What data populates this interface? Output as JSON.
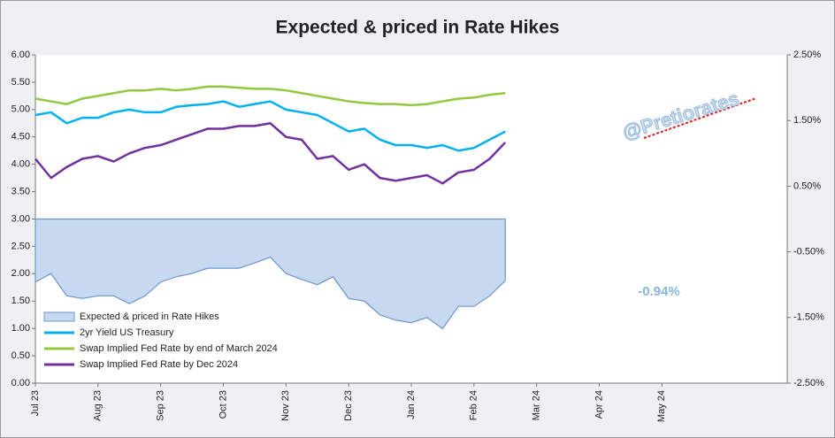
{
  "chart_data": {
    "type": "line",
    "title": "Expected & priced in Rate Hikes",
    "categories": [
      "Jul 23",
      null,
      null,
      null,
      "Aug 23",
      null,
      null,
      null,
      "Sep 23",
      null,
      null,
      null,
      "Oct 23",
      null,
      null,
      null,
      "Nov 23",
      null,
      null,
      null,
      "Dec 23",
      null,
      null,
      null,
      "Jan 24",
      null,
      null,
      null,
      "Feb 24",
      null,
      null,
      null,
      "Mar 24",
      null,
      null,
      null,
      "Apr 24",
      null,
      null,
      null,
      "May 24",
      null,
      null,
      null,
      null,
      null,
      null,
      null
    ],
    "series": [
      {
        "name": "Expected & priced in Rate Hikes",
        "type": "area",
        "axis": "y2",
        "color": "#c6d9f1",
        "edge": "#6f95cc",
        "values": [
          -0.96,
          -0.83,
          -1.17,
          -1.21,
          -1.17,
          -1.17,
          -1.29,
          -1.17,
          -0.96,
          -0.88,
          -0.83,
          -0.75,
          -0.75,
          -0.75,
          -0.67,
          -0.58,
          -0.83,
          -0.92,
          -1.0,
          -0.88,
          -1.21,
          -1.25,
          -1.46,
          -1.54,
          -1.58,
          -1.5,
          -1.67,
          -1.33,
          -1.33,
          -1.17,
          -0.94,
          null,
          null,
          null,
          null,
          null,
          null,
          null,
          null,
          null,
          null,
          null,
          null,
          null,
          null,
          null,
          null,
          null
        ]
      },
      {
        "name": "2yr Yield US Treasury",
        "color": "#00b0f0",
        "values": [
          4.9,
          4.95,
          4.75,
          4.85,
          4.85,
          4.95,
          5.0,
          4.95,
          4.95,
          5.05,
          5.08,
          5.1,
          5.15,
          5.05,
          5.1,
          5.15,
          5.0,
          4.95,
          4.9,
          4.75,
          4.6,
          4.65,
          4.45,
          4.35,
          4.35,
          4.3,
          4.35,
          4.25,
          4.3,
          4.45,
          4.6,
          null,
          null,
          null,
          null,
          null,
          null,
          null,
          null,
          null,
          null,
          null,
          null,
          null,
          null,
          null,
          null,
          null
        ]
      },
      {
        "name": "Swap Implied Fed Rate by end of March 2024",
        "color": "#92c83e",
        "values": [
          5.2,
          5.15,
          5.1,
          5.2,
          5.25,
          5.3,
          5.35,
          5.35,
          5.38,
          5.35,
          5.38,
          5.42,
          5.42,
          5.4,
          5.38,
          5.38,
          5.35,
          5.3,
          5.25,
          5.2,
          5.15,
          5.12,
          5.1,
          5.1,
          5.08,
          5.1,
          5.15,
          5.2,
          5.22,
          5.27,
          5.3,
          null,
          null,
          null,
          null,
          null,
          null,
          null,
          null,
          null,
          null,
          null,
          null,
          null,
          null,
          null,
          null,
          null
        ]
      },
      {
        "name": "Swap Implied Fed Rate by Dec 2024",
        "color": "#7030a0",
        "values": [
          4.1,
          3.75,
          3.95,
          4.1,
          4.15,
          4.05,
          4.2,
          4.3,
          4.35,
          4.45,
          4.55,
          4.65,
          4.65,
          4.7,
          4.7,
          4.75,
          4.5,
          4.45,
          4.1,
          4.15,
          3.9,
          4.0,
          3.75,
          3.7,
          3.75,
          3.8,
          3.65,
          3.85,
          3.9,
          4.1,
          4.4,
          null,
          null,
          null,
          null,
          null,
          null,
          null,
          null,
          null,
          null,
          null,
          null,
          null,
          null,
          null,
          null,
          null
        ]
      }
    ],
    "ylim": [
      0,
      6
    ],
    "yticks": [
      {
        "value": 0,
        "label": "0.00"
      },
      {
        "value": 0.5,
        "label": "0.50"
      },
      {
        "value": 1,
        "label": "1.00"
      },
      {
        "value": 1.5,
        "label": "1.50"
      },
      {
        "value": 2,
        "label": "2.00"
      },
      {
        "value": 2.5,
        "label": "2.50"
      },
      {
        "value": 3,
        "label": "3.00"
      },
      {
        "value": 3.5,
        "label": "3.50"
      },
      {
        "value": 4,
        "label": "4.00"
      },
      {
        "value": 4.5,
        "label": "4.50"
      },
      {
        "value": 5,
        "label": "5.00"
      },
      {
        "value": 5.5,
        "label": "5.50"
      },
      {
        "value": 6,
        "label": "6.00"
      }
    ],
    "y2lim": [
      -2.5,
      2.5
    ],
    "y2ticks": [
      {
        "value": -2.5,
        "label": "-2.50%"
      },
      {
        "value": -1.5,
        "label": "-1.50%"
      },
      {
        "value": -0.5,
        "label": "-0.50%"
      },
      {
        "value": 0.5,
        "label": "0.50%"
      },
      {
        "value": 1.5,
        "label": "1.50%"
      },
      {
        "value": 2.5,
        "label": "2.50%"
      }
    ],
    "legend": "lower left",
    "annotation": "-0.94%",
    "watermark": "@Pretiorates"
  }
}
